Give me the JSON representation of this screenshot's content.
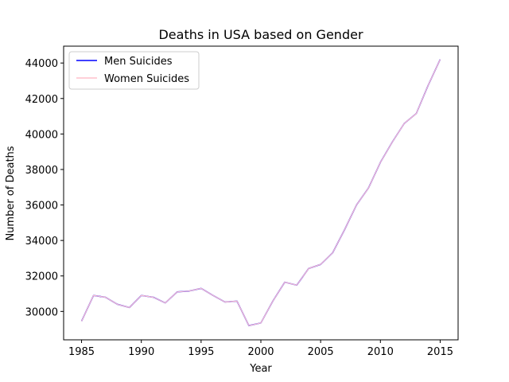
{
  "chart_data": {
    "type": "line",
    "title": "Deaths in USA based on Gender",
    "xlabel": "Year",
    "ylabel": "Number of Deaths",
    "xlim": [
      1983.5,
      2016.5
    ],
    "ylim": [
      28400,
      44950
    ],
    "xticks": [
      1985,
      1990,
      1995,
      2000,
      2005,
      2010,
      2015
    ],
    "yticks": [
      30000,
      32000,
      34000,
      36000,
      38000,
      40000,
      42000,
      44000
    ],
    "grid": false,
    "legend_position": "top-left",
    "x": [
      1985,
      1986,
      1987,
      1988,
      1989,
      1990,
      1991,
      1992,
      1993,
      1994,
      1995,
      1996,
      1997,
      1998,
      1999,
      2000,
      2001,
      2002,
      2003,
      2004,
      2005,
      2006,
      2007,
      2008,
      2009,
      2010,
      2011,
      2012,
      2013,
      2014,
      2015
    ],
    "series": [
      {
        "name": "Men Suicides",
        "color": "#0000ff",
        "values": [
          29450,
          30900,
          30800,
          30400,
          30220,
          30900,
          30800,
          30480,
          31100,
          31150,
          31300,
          30900,
          30530,
          30580,
          29200,
          29350,
          30580,
          31650,
          31480,
          32420,
          32650,
          33300,
          34600,
          36000,
          36950,
          38400,
          39550,
          40600,
          41150,
          42750,
          44200
        ]
      },
      {
        "name": "Women Suicides",
        "color": "#ffc0cb",
        "values": [
          29450,
          30900,
          30800,
          30400,
          30220,
          30900,
          30800,
          30480,
          31100,
          31150,
          31300,
          30900,
          30530,
          30580,
          29200,
          29350,
          30580,
          31650,
          31480,
          32420,
          32650,
          33300,
          34600,
          36000,
          36950,
          38400,
          39550,
          40600,
          41150,
          42750,
          44200
        ]
      }
    ]
  }
}
